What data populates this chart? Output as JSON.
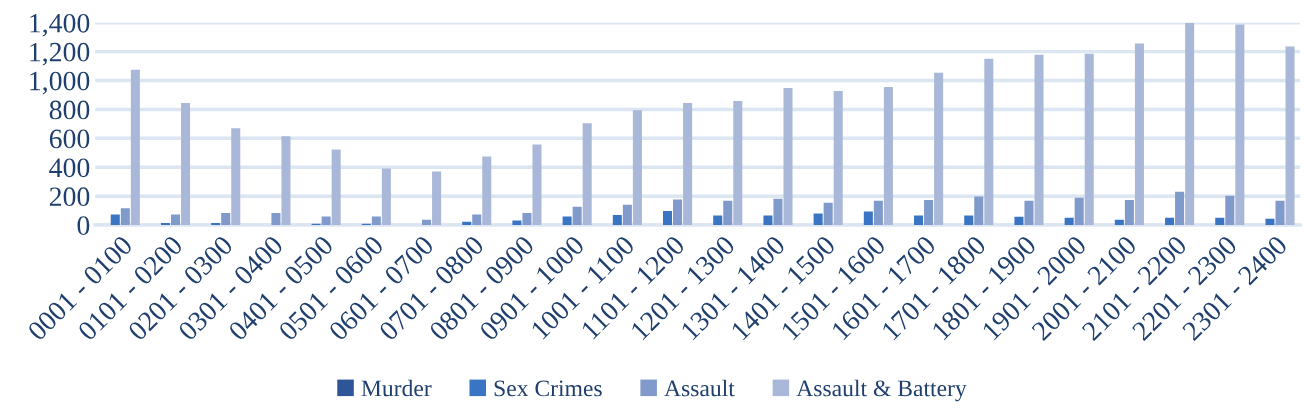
{
  "chart_data": {
    "type": "bar",
    "categories": [
      "0001 - 0100",
      "0101 - 0200",
      "0201 - 0300",
      "0301 - 0400",
      "0401 - 0500",
      "0501 - 0600",
      "0601 - 0700",
      "0701 - 0800",
      "0801 - 0900",
      "0901 - 1000",
      "1001 - 1100",
      "1101 - 1200",
      "1201 - 1300",
      "1301 - 1400",
      "1401 - 1500",
      "1501 - 1600",
      "1601 - 1700",
      "1701 - 1800",
      "1801 - 1900",
      "1901 - 2000",
      "2001 - 2100",
      "2101 - 2200",
      "2201 - 2300",
      "2301 - 2400"
    ],
    "series": [
      {
        "name": "Murder",
        "color": "#2e5597",
        "values": [
          0,
          0,
          0,
          0,
          0,
          0,
          0,
          0,
          0,
          0,
          0,
          0,
          0,
          0,
          0,
          0,
          0,
          0,
          0,
          0,
          0,
          0,
          0,
          0
        ]
      },
      {
        "name": "Sex Crimes",
        "color": "#3a75c4",
        "values": [
          74,
          14,
          14,
          0,
          9,
          9,
          0,
          23,
          31,
          60,
          69,
          97,
          66,
          66,
          80,
          94,
          66,
          66,
          57,
          51,
          37,
          51,
          51,
          43
        ]
      },
      {
        "name": "Assault",
        "color": "#7f9acb",
        "values": [
          117,
          74,
          83,
          83,
          60,
          60,
          37,
          74,
          83,
          126,
          140,
          177,
          169,
          183,
          154,
          169,
          174,
          197,
          169,
          189,
          174,
          231,
          203,
          169
        ]
      },
      {
        "name": "Assault & Battery",
        "color": "#a9b8d8",
        "values": [
          1074,
          844,
          670,
          614,
          523,
          391,
          370,
          474,
          558,
          705,
          795,
          844,
          858,
          949,
          928,
          956,
          1053,
          1151,
          1179,
          1186,
          1256,
          1400,
          1388,
          1235
        ]
      }
    ],
    "ylim": [
      0,
      1400
    ],
    "yticks": [
      {
        "value": 0,
        "label": "0"
      },
      {
        "value": 200,
        "label": "200"
      },
      {
        "value": 400,
        "label": "400"
      },
      {
        "value": 600,
        "label": "600"
      },
      {
        "value": 800,
        "label": "800"
      },
      {
        "value": 1000,
        "label": "1,000"
      },
      {
        "value": 1200,
        "label": "1,200"
      },
      {
        "value": 1400,
        "label": "1,400"
      }
    ],
    "grid": "y",
    "legend": "bottom"
  }
}
